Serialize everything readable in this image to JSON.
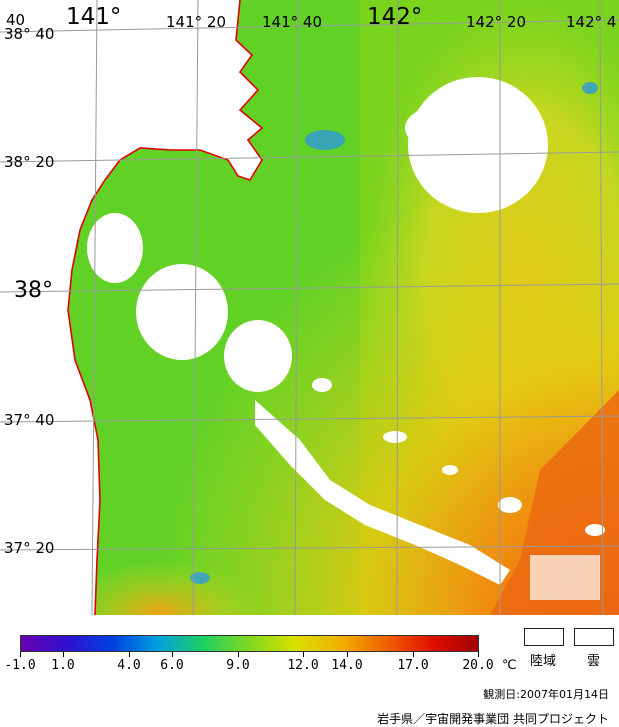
{
  "map": {
    "lon_labels": [
      "141°",
      "141° 20",
      "141° 40",
      "142°",
      "142° 20",
      "142° 4"
    ],
    "lon_labels_left": "40",
    "lat_labels": [
      "38° 40",
      "38° 20",
      "38°",
      "37° 40",
      "37° 20"
    ],
    "colors": {
      "sea_base": "#8fd620",
      "coastline": "#e00000",
      "grid": "#a0a0a0",
      "cloud": "#ffffff"
    }
  },
  "legend": {
    "tick_labels": [
      "-1.0",
      "1.0",
      "4.0",
      "6.0",
      "9.0",
      "12.0",
      "14.0",
      "17.0",
      "20.0"
    ],
    "tick_values": [
      -1,
      1,
      4,
      6,
      9,
      12,
      14,
      17,
      20
    ],
    "unit": "℃",
    "range": [
      -1,
      20
    ],
    "gradient_stops": [
      "#6a00b0",
      "#3010d0",
      "#0040e0",
      "#00a0e0",
      "#20d060",
      "#80d820",
      "#d8e000",
      "#f0b000",
      "#f06000",
      "#e01000",
      "#a00000"
    ],
    "land_label": "陸域",
    "cloud_label": "雲"
  },
  "observation_date": "観測日:2007年01月14日",
  "credit": "岩手県／宇宙開発事業団 共同プロジェクト"
}
